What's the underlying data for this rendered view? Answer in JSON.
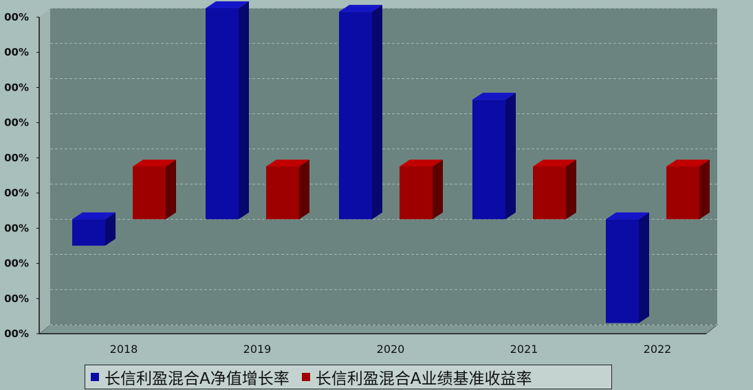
{
  "chart_data": {
    "type": "bar",
    "categories": [
      "2018",
      "2019",
      "2020",
      "2021",
      "2022"
    ],
    "series": [
      {
        "name": "长信利盈混合A净值增长率",
        "color": "#0b0ba6",
        "side": "#070770",
        "top": "#1515c8",
        "values": [
          -7.5,
          60.0,
          59.0,
          34.0,
          -29.5
        ]
      },
      {
        "name": "长信利盈混合A业绩基准收益率",
        "color": "#9e0000",
        "side": "#5e0000",
        "top": "#c00000",
        "values": [
          15.0,
          15.0,
          15.0,
          15.0,
          15.0
        ]
      }
    ],
    "y_tick_labels": [
      "00%",
      "00%",
      "00%",
      "00%",
      "00%",
      "00%",
      "00%",
      "00%",
      "00%",
      "00%"
    ],
    "ylim": [
      -30,
      60
    ],
    "grid": true,
    "legend_position": "bottom"
  }
}
